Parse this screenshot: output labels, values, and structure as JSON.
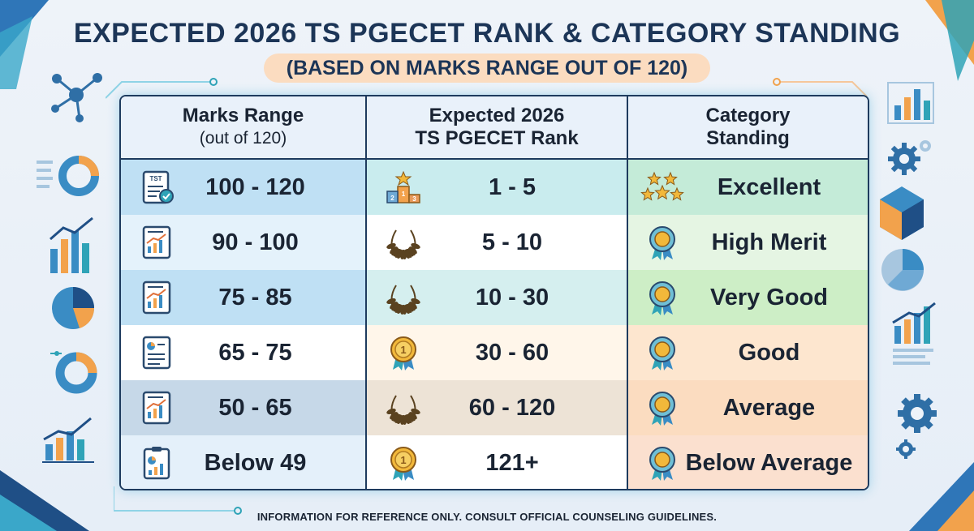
{
  "title": "EXPECTED 2026 TS PGECET RANK & CATEGORY STANDING",
  "subtitle": "(BASED ON MARKS RANGE OUT OF 120)",
  "table": {
    "headers": {
      "marks_line1": "Marks Range",
      "marks_line2": "(out of 120)",
      "rank_line1": "Expected 2026",
      "rank_line2": "TS PGECET Rank",
      "category_line1": "Category",
      "category_line2": "Standing"
    },
    "rows": [
      {
        "marks": "100 - 120",
        "rank": "1 - 5",
        "category": "Excellent"
      },
      {
        "marks": "90 - 100",
        "rank": "5 - 10",
        "category": "High Merit"
      },
      {
        "marks": "75 - 85",
        "rank": "10 - 30",
        "category": "Very Good"
      },
      {
        "marks": "65 - 75",
        "rank": "30 - 60",
        "category": "Good"
      },
      {
        "marks": "50 - 65",
        "rank": "60 - 120",
        "category": "Average"
      },
      {
        "marks": "Below 49",
        "rank": "121+",
        "category": "Below Average"
      }
    ],
    "row_colors": [
      [
        "#bfe0f4",
        "#c9ecee",
        "#c4ebd8"
      ],
      [
        "#e4f2fb",
        "#ffffff",
        "#e5f5e3"
      ],
      [
        "#bfe0f4",
        "#d5efef",
        "#cdeec6"
      ],
      [
        "#ffffff",
        "#fff6ea",
        "#fde6cf"
      ],
      [
        "#c6d8e8",
        "#ede3d6",
        "#fbdcc0"
      ],
      [
        "#e4f0fa",
        "#ffffff",
        "#fbe0cf"
      ]
    ],
    "icons": {
      "marks": [
        "test-paper-icon",
        "chart-report-icon",
        "chart-report-icon",
        "document-list-icon",
        "chart-report-icon",
        "clipboard-chart-icon"
      ],
      "rank": [
        "podium-icon",
        "laurel-wreath-icon",
        "laurel-wreath-icon",
        "medal-icon",
        "laurel-wreath-icon",
        "medal-icon"
      ],
      "category": [
        "stars-icon",
        "ribbon-badge-icon",
        "ribbon-badge-icon",
        "ribbon-badge-icon",
        "ribbon-badge-icon",
        "ribbon-badge-icon"
      ]
    },
    "icon_text": {
      "test_paper": "TST",
      "podium": [
        "2",
        "1",
        "3"
      ],
      "medal": "1"
    }
  },
  "footer": "INFORMATION FOR REFERENCE ONLY. CONSULT OFFICIAL COUNSELING GUIDELINES.",
  "colors": {
    "navy": "#1c3557",
    "accent_orange": "#f2a24c",
    "accent_teal": "#2fa3b7"
  }
}
